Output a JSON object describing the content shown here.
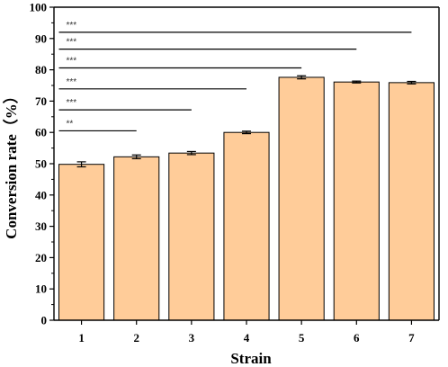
{
  "chart_data": {
    "type": "bar",
    "categories": [
      "1",
      "2",
      "3",
      "4",
      "5",
      "6",
      "7"
    ],
    "values": [
      49.8,
      52.2,
      53.4,
      60.0,
      77.6,
      76.1,
      75.9
    ],
    "errors": [
      0.8,
      0.6,
      0.5,
      0.4,
      0.5,
      0.3,
      0.4
    ],
    "xlabel": "Strain",
    "ylabel": "Conversion rate（%）",
    "ylim": [
      0,
      100
    ],
    "yticks": [
      0,
      10,
      20,
      30,
      40,
      50,
      60,
      70,
      80,
      90,
      100
    ],
    "bar_color": "#FFCC99",
    "bar_edge_color": "#000000",
    "grid": false,
    "significance": [
      {
        "label": "**",
        "level": 60.5,
        "to_category": "2"
      },
      {
        "label": "***",
        "level": 67.2,
        "to_category": "3"
      },
      {
        "label": "***",
        "level": 73.9,
        "to_category": "4"
      },
      {
        "label": "***",
        "level": 80.6,
        "to_category": "5"
      },
      {
        "label": "***",
        "level": 86.6,
        "to_category": "6"
      },
      {
        "label": "***",
        "level": 92.0,
        "to_category": "7"
      }
    ]
  }
}
